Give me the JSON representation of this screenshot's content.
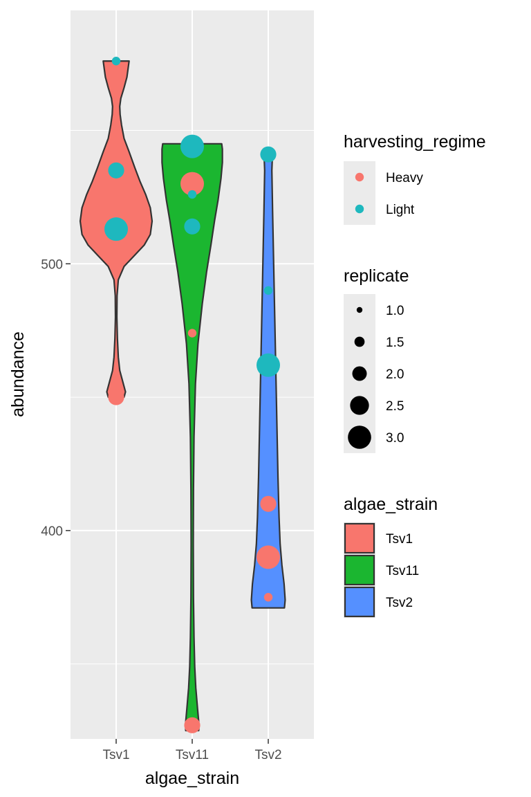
{
  "chart_data": {
    "type": "violin",
    "xlabel": "algae_strain",
    "ylabel": "abundance",
    "categories": [
      "Tsv1",
      "Tsv11",
      "Tsv2"
    ],
    "fill_colors": {
      "Tsv1": "#F8766D",
      "Tsv11": "#1BB630",
      "Tsv2": "#5590FF"
    },
    "point_colors": {
      "Heavy": "#F8766D",
      "Light": "#1EB8BE"
    },
    "ylim": [
      321.9,
      595
    ],
    "y_ticks": [
      400,
      500
    ],
    "y_minor_ticks": [
      350,
      450,
      550
    ],
    "grid": true,
    "violins": [
      {
        "category": "Tsv1",
        "profile": [
          [
            450,
            0.22
          ],
          [
            452,
            0.26
          ],
          [
            456,
            0.18
          ],
          [
            460,
            0.1
          ],
          [
            465,
            0.06
          ],
          [
            472,
            0.035
          ],
          [
            480,
            0.02
          ],
          [
            488,
            0.025
          ],
          [
            494,
            0.06
          ],
          [
            499,
            0.22
          ],
          [
            503,
            0.5
          ],
          [
            507,
            0.78
          ],
          [
            511,
            0.95
          ],
          [
            516,
            1.0
          ],
          [
            521,
            0.95
          ],
          [
            526,
            0.82
          ],
          [
            531,
            0.66
          ],
          [
            536,
            0.52
          ],
          [
            542,
            0.36
          ],
          [
            547,
            0.22
          ],
          [
            552,
            0.15
          ],
          [
            556,
            0.11
          ],
          [
            559,
            0.1
          ],
          [
            562,
            0.13
          ],
          [
            566,
            0.22
          ],
          [
            570,
            0.3
          ],
          [
            574,
            0.34
          ],
          [
            576,
            0.36
          ]
        ]
      },
      {
        "category": "Tsv11",
        "profile": [
          [
            325,
            0.18
          ],
          [
            327,
            0.19
          ],
          [
            333,
            0.15
          ],
          [
            341,
            0.1
          ],
          [
            349,
            0.07
          ],
          [
            360,
            0.05
          ],
          [
            375,
            0.035
          ],
          [
            395,
            0.03
          ],
          [
            415,
            0.035
          ],
          [
            435,
            0.05
          ],
          [
            455,
            0.09
          ],
          [
            470,
            0.16
          ],
          [
            485,
            0.28
          ],
          [
            497,
            0.4
          ],
          [
            507,
            0.52
          ],
          [
            516,
            0.62
          ],
          [
            524,
            0.72
          ],
          [
            532,
            0.8
          ],
          [
            538,
            0.84
          ],
          [
            543,
            0.84
          ],
          [
            545,
            0.82
          ]
        ]
      },
      {
        "category": "Tsv2",
        "profile": [
          [
            371,
            0.45
          ],
          [
            374,
            0.47
          ],
          [
            380,
            0.44
          ],
          [
            387,
            0.38
          ],
          [
            395,
            0.33
          ],
          [
            405,
            0.3
          ],
          [
            420,
            0.27
          ],
          [
            440,
            0.24
          ],
          [
            460,
            0.21
          ],
          [
            480,
            0.18
          ],
          [
            500,
            0.15
          ],
          [
            520,
            0.12
          ],
          [
            535,
            0.1
          ],
          [
            542,
            0.12
          ]
        ]
      }
    ],
    "points": [
      {
        "category": "Tsv1",
        "abundance": 576,
        "harvesting_regime": "Light",
        "replicate": 1
      },
      {
        "category": "Tsv1",
        "abundance": 535,
        "harvesting_regime": "Light",
        "replicate": 2
      },
      {
        "category": "Tsv1",
        "abundance": 513,
        "harvesting_regime": "Light",
        "replicate": 3
      },
      {
        "category": "Tsv1",
        "abundance": 450,
        "harvesting_regime": "Heavy",
        "replicate": 2
      },
      {
        "category": "Tsv11",
        "abundance": 544,
        "harvesting_regime": "Light",
        "replicate": 3
      },
      {
        "category": "Tsv11",
        "abundance": 530,
        "harvesting_regime": "Heavy",
        "replicate": 3
      },
      {
        "category": "Tsv11",
        "abundance": 526,
        "harvesting_regime": "Light",
        "replicate": 1
      },
      {
        "category": "Tsv11",
        "abundance": 514,
        "harvesting_regime": "Light",
        "replicate": 2
      },
      {
        "category": "Tsv11",
        "abundance": 474,
        "harvesting_regime": "Heavy",
        "replicate": 1
      },
      {
        "category": "Tsv11",
        "abundance": 327,
        "harvesting_regime": "Heavy",
        "replicate": 2
      },
      {
        "category": "Tsv2",
        "abundance": 541,
        "harvesting_regime": "Light",
        "replicate": 2
      },
      {
        "category": "Tsv2",
        "abundance": 490,
        "harvesting_regime": "Light",
        "replicate": 1
      },
      {
        "category": "Tsv2",
        "abundance": 462,
        "harvesting_regime": "Light",
        "replicate": 3
      },
      {
        "category": "Tsv2",
        "abundance": 410,
        "harvesting_regime": "Heavy",
        "replicate": 2
      },
      {
        "category": "Tsv2",
        "abundance": 390,
        "harvesting_regime": "Heavy",
        "replicate": 3
      },
      {
        "category": "Tsv2",
        "abundance": 375,
        "harvesting_regime": "Heavy",
        "replicate": 1
      }
    ],
    "legends": {
      "harvesting_regime": {
        "title": "harvesting_regime",
        "entries": [
          {
            "label": "Heavy",
            "color": "#F8766D"
          },
          {
            "label": "Light",
            "color": "#1EB8BE"
          }
        ]
      },
      "replicate": {
        "title": "replicate",
        "entries": [
          {
            "label": "1.0",
            "value": 1.0
          },
          {
            "label": "1.5",
            "value": 1.5
          },
          {
            "label": "2.0",
            "value": 2.0
          },
          {
            "label": "2.5",
            "value": 2.5
          },
          {
            "label": "3.0",
            "value": 3.0
          }
        ]
      },
      "algae_strain": {
        "title": "algae_strain",
        "entries": [
          {
            "label": "Tsv1",
            "color": "#F8766D"
          },
          {
            "label": "Tsv11",
            "color": "#1BB630"
          },
          {
            "label": "Tsv2",
            "color": "#5590FF"
          }
        ]
      }
    }
  }
}
